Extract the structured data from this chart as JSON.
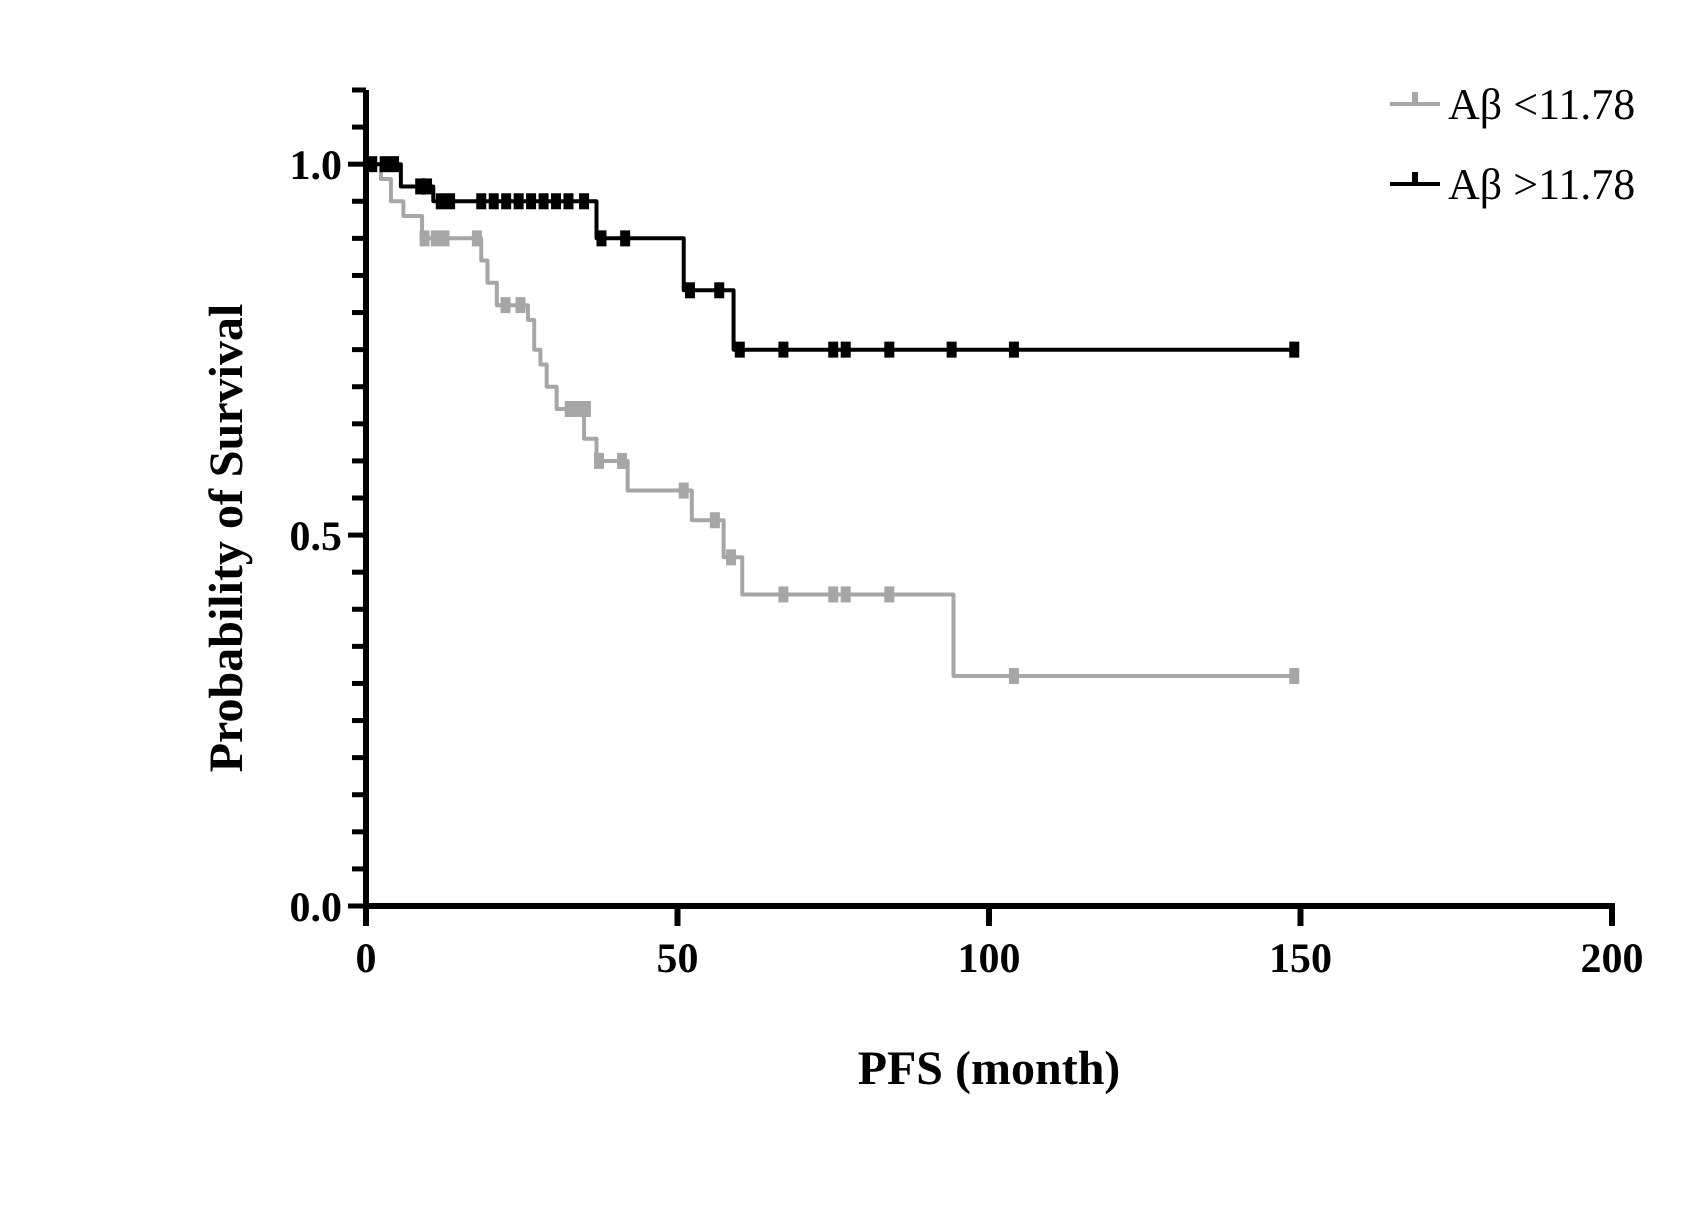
{
  "chart_data": {
    "type": "step",
    "xlabel": "PFS (month)",
    "ylabel": "Probability of Survival",
    "xlim": [
      0,
      200
    ],
    "ylim": [
      0,
      1.1
    ],
    "xticks": [
      0,
      50,
      100,
      150,
      200
    ],
    "yticks": [
      {
        "value": 0,
        "label": "0.0"
      },
      {
        "value": 0.05,
        "label": null
      },
      {
        "value": 0.1,
        "label": null
      },
      {
        "value": 0.15,
        "label": null
      },
      {
        "value": 0.2,
        "label": null
      },
      {
        "value": 0.25,
        "label": null
      },
      {
        "value": 0.3,
        "label": null
      },
      {
        "value": 0.35,
        "label": null
      },
      {
        "value": 0.4,
        "label": null
      },
      {
        "value": 0.45,
        "label": null
      },
      {
        "value": 0.5,
        "label": "0.5"
      },
      {
        "value": 0.55,
        "label": null
      },
      {
        "value": 0.6,
        "label": null
      },
      {
        "value": 0.65,
        "label": null
      },
      {
        "value": 0.7,
        "label": null
      },
      {
        "value": 0.75,
        "label": null
      },
      {
        "value": 0.8,
        "label": null
      },
      {
        "value": 0.85,
        "label": null
      },
      {
        "value": 0.9,
        "label": null
      },
      {
        "value": 0.95,
        "label": null
      },
      {
        "value": 1,
        "label": "1.0"
      },
      {
        "value": 1.05,
        "label": null
      },
      {
        "value": 1.1,
        "label": null
      }
    ],
    "legend": "top right",
    "line_style": "solid",
    "series": [
      {
        "name": "Aβ <11.78",
        "color": "#a6a6a6",
        "x": [
          0,
          2.4,
          4,
          6,
          9,
          18.5,
          19.5,
          21,
          26,
          27,
          28,
          29,
          30.6,
          35,
          37,
          42,
          52.3,
          57.4,
          60.4,
          94.3,
          149
        ],
        "values": [
          1,
          0.98,
          0.95,
          0.93,
          0.9,
          0.87,
          0.84,
          0.81,
          0.79,
          0.75,
          0.73,
          0.7,
          0.67,
          0.63,
          0.6,
          0.56,
          0.52,
          0.47,
          0.42,
          0.31,
          0.31
        ]
      },
      {
        "name": "Aβ >11.78",
        "color": "#000000",
        "x": [
          0,
          5.6,
          10.8,
          37,
          51,
          59,
          149
        ],
        "values": [
          1,
          0.97,
          0.95,
          0.9,
          0.83,
          0.75,
          0.75
        ]
      },
      {
        "type": "scatter",
        "marker": "square",
        "color": "#a6a6a6",
        "x": [
          9.4,
          11.2,
          12.6,
          17.8,
          22.4,
          24.8,
          32.7,
          33.9,
          35.3,
          37.4,
          41.1,
          51,
          56,
          58.6,
          67,
          75,
          77,
          84,
          104,
          149
        ],
        "values": [
          0.9,
          0.9,
          0.9,
          0.9,
          0.81,
          0.81,
          0.67,
          0.67,
          0.67,
          0.6,
          0.6,
          0.56,
          0.52,
          0.47,
          0.42,
          0.42,
          0.42,
          0.42,
          0.31,
          0.31
        ]
      },
      {
        "type": "scatter",
        "marker": "square",
        "color": "#000000",
        "x": [
          1,
          3,
          4.5,
          8.7,
          9.8,
          12,
          13.5,
          18.5,
          20.5,
          22.5,
          24.5,
          26.5,
          28.5,
          30.5,
          32.5,
          35,
          37.8,
          41.6,
          52,
          56.7,
          60,
          67,
          75,
          77,
          84,
          94,
          104,
          149
        ],
        "values": [
          1,
          1,
          1,
          0.97,
          0.97,
          0.95,
          0.95,
          0.95,
          0.95,
          0.95,
          0.95,
          0.95,
          0.95,
          0.95,
          0.95,
          0.95,
          0.9,
          0.9,
          0.83,
          0.83,
          0.75,
          0.75,
          0.75,
          0.75,
          0.75,
          0.75,
          0.75,
          0.75
        ]
      }
    ]
  }
}
